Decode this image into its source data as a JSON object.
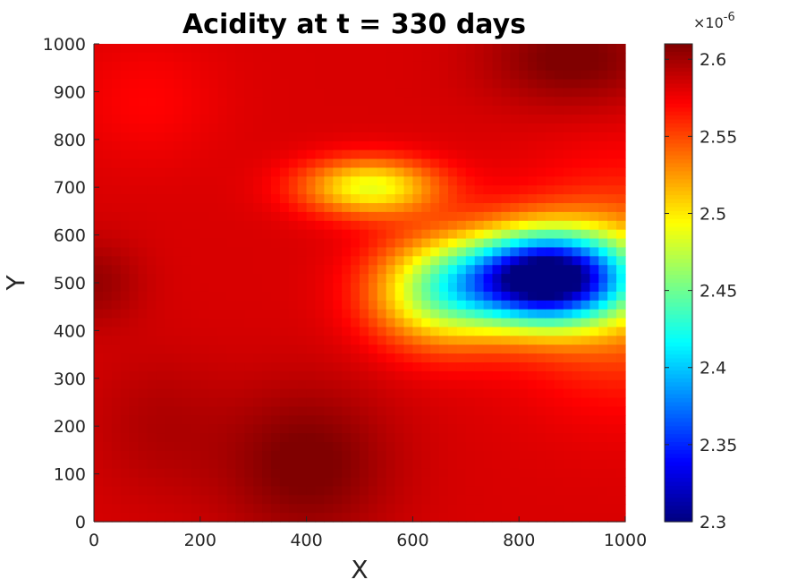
{
  "chart_data": {
    "type": "heatmap",
    "title": "Acidity at t = 330 days",
    "xlabel": "X",
    "ylabel": "Y",
    "xlim": [
      0,
      1000
    ],
    "ylim": [
      0,
      1000
    ],
    "x_ticks": [
      0,
      200,
      400,
      600,
      800,
      1000
    ],
    "y_ticks": [
      0,
      100,
      200,
      300,
      400,
      500,
      600,
      700,
      800,
      900,
      1000
    ],
    "colormap": "jet",
    "colorbar": {
      "min": 2.3,
      "max": 2.61,
      "ticks": [
        "2.3",
        "2.35",
        "2.4",
        "2.45",
        "2.5",
        "2.55",
        "2.6"
      ],
      "tick_values": [
        2.3,
        2.35,
        2.4,
        2.45,
        2.5,
        2.55,
        2.6
      ],
      "exponent_label": "×10",
      "exponent_power": "-6"
    },
    "field": {
      "baseline": 2.583,
      "features": [
        {
          "x": 850,
          "y": 510,
          "amplitude": -0.29,
          "sx": 150,
          "sy": 95
        },
        {
          "x": 650,
          "y": 480,
          "amplitude": -0.11,
          "sx": 130,
          "sy": 110
        },
        {
          "x": 520,
          "y": 700,
          "amplitude": -0.095,
          "sx": 130,
          "sy": 60
        },
        {
          "x": 1000,
          "y": 500,
          "amplitude": -0.05,
          "sx": 200,
          "sy": 220
        },
        {
          "x": 400,
          "y": 120,
          "amplitude": 0.03,
          "sx": 160,
          "sy": 160
        },
        {
          "x": 900,
          "y": 970,
          "amplitude": 0.03,
          "sx": 160,
          "sy": 100
        },
        {
          "x": 0,
          "y": 500,
          "amplitude": 0.02,
          "sx": 90,
          "sy": 90
        },
        {
          "x": 120,
          "y": 200,
          "amplitude": 0.012,
          "sx": 130,
          "sy": 150
        },
        {
          "x": 100,
          "y": 880,
          "amplitude": -0.012,
          "sx": 140,
          "sy": 130
        }
      ]
    }
  }
}
